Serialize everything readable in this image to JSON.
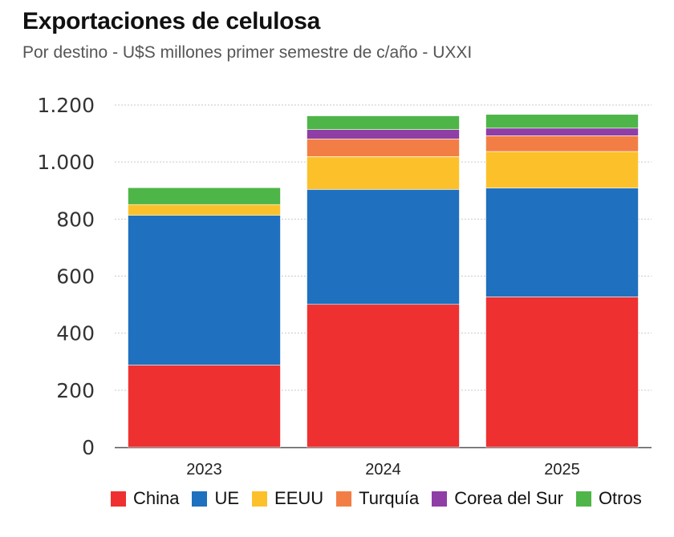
{
  "chart_data": {
    "type": "bar",
    "stacked": true,
    "title": "Exportaciones de celulosa",
    "subtitle": "Por destino - U$S millones primer semestre de c/año - UXXI",
    "xlabel": "",
    "ylabel": "",
    "categories": [
      "2023",
      "2024",
      "2025"
    ],
    "ylim": [
      0,
      1200
    ],
    "yticks": [
      0,
      200,
      400,
      600,
      800,
      1000,
      1200
    ],
    "ytick_labels": [
      "0",
      "200",
      "400",
      "600",
      "800",
      "1.000",
      "1.200"
    ],
    "grid": true,
    "legend_position": "bottom",
    "series": [
      {
        "name": "China",
        "color": "#EE3030",
        "values": [
          288,
          501,
          527
        ]
      },
      {
        "name": "UE",
        "color": "#1F70BE",
        "values": [
          525,
          403,
          382
        ]
      },
      {
        "name": "EEUU",
        "color": "#FCC12A",
        "values": [
          38,
          115,
          128
        ]
      },
      {
        "name": "Turquía",
        "color": "#F37E45",
        "values": [
          0,
          62,
          55
        ]
      },
      {
        "name": "Corea del Sur",
        "color": "#8E3EA5",
        "values": [
          0,
          33,
          27
        ]
      },
      {
        "name": "Otros",
        "color": "#4EB548",
        "values": [
          59,
          48,
          48
        ]
      }
    ]
  }
}
